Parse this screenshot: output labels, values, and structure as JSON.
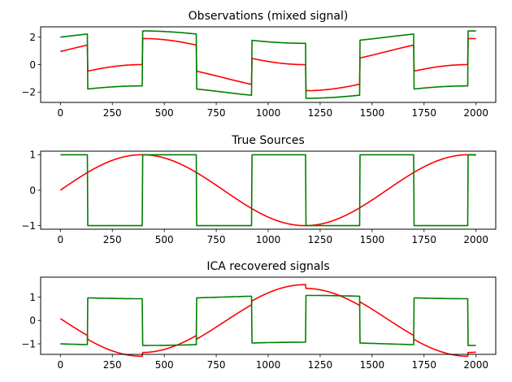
{
  "colors": {
    "sine": "#ff0000",
    "square": "#008000"
  },
  "chart_data": [
    {
      "type": "line",
      "title": "Observations (mixed signal)",
      "xlim": [
        -95,
        2095
      ],
      "ylim": [
        -2.75,
        2.75
      ],
      "xticks": [
        0,
        250,
        500,
        750,
        1000,
        1250,
        1500,
        1750,
        2000
      ],
      "yticks": [
        -2,
        0,
        2
      ],
      "series": [
        {
          "color": "#ff0000",
          "period": 1570,
          "sine_amp": 1.0,
          "square_amp": 1.0,
          "square_period": 1054,
          "square_phase": 0.25,
          "noise_amp": 0,
          "values_at_x": {
            "0": 1.0,
            "130": 1.8,
            "131": -0.2,
            "200": 0,
            "400": -0.9,
            "655": -0.6,
            "656": -1.9,
            "920": 0.9,
            "1000": 1.8,
            "1180": 1.2,
            "1181": -0.8,
            "1400": -2.0,
            "1440": -1.9,
            "1441": 0.1,
            "1700": 1.8,
            "1701": -0.2,
            "1760": 0,
            "1960": -0.9,
            "2000": 0.7
          }
        },
        {
          "color": "#008000",
          "values_at_x": {
            "0": 2.0,
            "130": 2.4,
            "131": -1.6,
            "200": -1.5,
            "400": -2.0,
            "401": 2.0,
            "655": 1.5,
            "656": -2.4,
            "920": -1.5,
            "921": 2.4,
            "1000": 2.5,
            "1180": 2.0,
            "1181": -2.0,
            "1400": -2.5,
            "1440": -2.4,
            "1441": 1.6,
            "1700": 2.4,
            "1701": -1.6,
            "1760": -1.5,
            "1960": -2.0,
            "1961": 2.0,
            "2000": 1.8
          }
        }
      ]
    },
    {
      "type": "line",
      "title": "True Sources",
      "xlim": [
        -95,
        2095
      ],
      "ylim": [
        -1.1,
        1.1
      ],
      "xticks": [
        0,
        250,
        500,
        750,
        1000,
        1250,
        1500,
        1750,
        2000
      ],
      "yticks": [
        -1,
        0,
        1
      ],
      "series": [
        {
          "color": "#ff0000",
          "formula": "sin(2*pi*x/1570)",
          "values_at_x": {
            "0": 0,
            "200": 1.0,
            "590": -1.0,
            "985": 1.0,
            "1380": -1.0,
            "1770": 1.0,
            "2000": -0.3
          }
        },
        {
          "color": "#008000",
          "formula": "square",
          "values_at_x": {
            "0": 1,
            "130": 1,
            "131": -1,
            "395": -1,
            "396": 1,
            "655": 1,
            "656": -1,
            "920": -1,
            "921": 1,
            "1180": 1,
            "1181": -1,
            "1440": -1,
            "1441": 1,
            "1700": 1,
            "1701": -1,
            "1960": -1,
            "1961": 1,
            "2000": 1
          }
        }
      ]
    },
    {
      "type": "line",
      "title": "ICA recovered signals",
      "xlim": [
        -95,
        2095
      ],
      "ylim": [
        -1.45,
        1.85
      ],
      "xticks": [
        0,
        250,
        500,
        750,
        1000,
        1250,
        1500,
        1750,
        2000
      ],
      "yticks": [
        -1,
        0,
        1
      ],
      "series": [
        {
          "color": "#ff0000",
          "values_at_x": {
            "0": 0.1,
            "200": -1.2,
            "590": 1.6,
            "655": 1.45,
            "985": -1.3,
            "1380": 1.7,
            "1440": 1.45,
            "1770": -1.25,
            "2000": 0.55
          }
        },
        {
          "color": "#008000",
          "values_at_x": {
            "0": -1.05,
            "130": -1.1,
            "131": 0.9,
            "395": 0.95,
            "396": -1.1,
            "655": -1.1,
            "656": 1.0,
            "920": 0.95,
            "921": -1.1,
            "1180": -1.1,
            "1181": 0.95,
            "1440": 1.0,
            "1441": -1.1,
            "1700": -1.1,
            "1701": 0.9,
            "1960": 0.95,
            "1961": -1.05,
            "2000": -1.05
          }
        }
      ]
    }
  ]
}
